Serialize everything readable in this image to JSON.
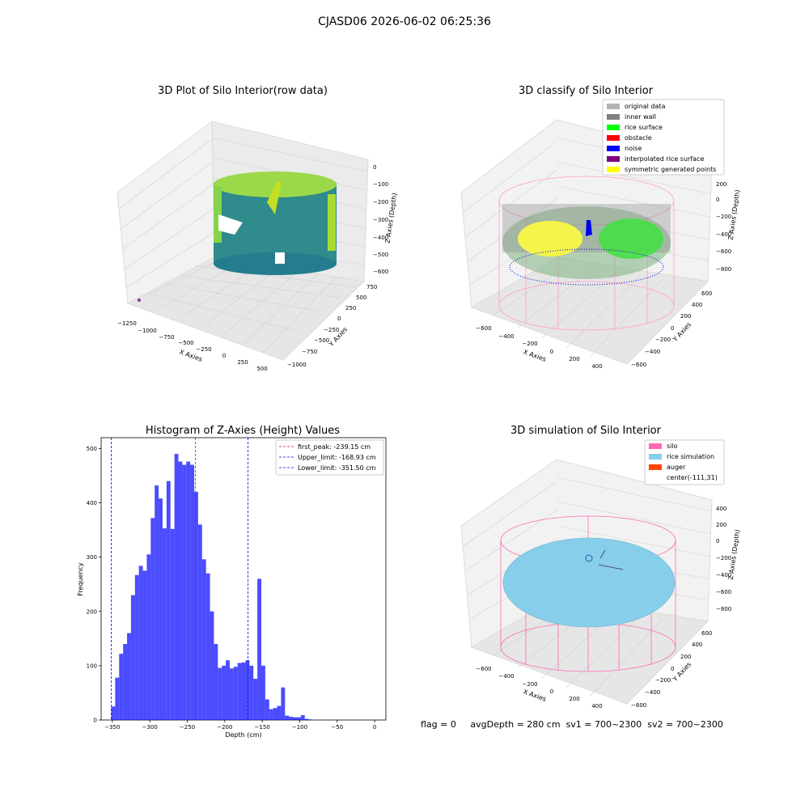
{
  "suptitle": "CJASD06 2026-06-02 06:25:36",
  "panels": {
    "raw": {
      "title": "3D Plot of Silo Interior(row data)",
      "xlabel": "X Axies",
      "ylabel": "Y Axies",
      "zlabel": "Z Axies (Depth)",
      "xticks": [
        "−1250",
        "−1000",
        "−750",
        "−500",
        "−250",
        "0",
        "250",
        "500"
      ],
      "yticks": [
        "750",
        "500",
        "250",
        "0",
        "−250",
        "−500",
        "−750",
        "−1000"
      ],
      "zticks": [
        "0",
        "−100",
        "−200",
        "−300",
        "−400",
        "−500",
        "−600"
      ]
    },
    "classify": {
      "title": "3D classify of Silo Interior",
      "xlabel": "X Axies",
      "ylabel": "Y Axies",
      "zlabel": "Z Axies (Depth)",
      "xticks": [
        "−600",
        "−400",
        "−200",
        "0",
        "200",
        "400"
      ],
      "yticks": [
        "600",
        "400",
        "200",
        "0",
        "−200",
        "−400",
        "−600"
      ],
      "zticks": [
        "400",
        "200",
        "0",
        "−200",
        "−400",
        "−600",
        "−800"
      ],
      "legend": [
        {
          "label": "original data",
          "color": "#b4b4b4"
        },
        {
          "label": "inner wall",
          "color": "#808080"
        },
        {
          "label": "rice surface",
          "color": "#00ff00"
        },
        {
          "label": "obstacle",
          "color": "#ff0000"
        },
        {
          "label": "noise",
          "color": "#0000ff"
        },
        {
          "label": "interpolated rice surface",
          "color": "#800080"
        },
        {
          "label": "symmetric generated points",
          "color": "#ffff00"
        }
      ]
    },
    "simulation": {
      "title": "3D simulation of Silo Interior",
      "xlabel": "X Axies",
      "ylabel": "Y Axies",
      "zlabel": "Z Axies (Depth)",
      "xticks": [
        "−600",
        "−400",
        "−200",
        "0",
        "200",
        "400"
      ],
      "yticks": [
        "600",
        "400",
        "200",
        "0",
        "−200",
        "−400",
        "−600"
      ],
      "zticks": [
        "400",
        "200",
        "0",
        "−200",
        "−400",
        "−600",
        "−800"
      ],
      "legend": [
        {
          "label": "silo",
          "color": "#ff69b4"
        },
        {
          "label": "rice simulation",
          "color": "#87ceeb"
        },
        {
          "label": "auger",
          "color": "#ff4500"
        },
        {
          "label": "center(-111,31)",
          "color": ""
        }
      ]
    }
  },
  "chart_data": {
    "type": "bar",
    "title": "Histogram of Z-Axies (Height) Values",
    "xlabel": "Depth (cm)",
    "ylabel": "Frequency",
    "xlim": [
      -365,
      15
    ],
    "ylim": [
      0,
      520
    ],
    "xticks": [
      -350,
      -300,
      -250,
      -200,
      -150,
      -100,
      -50,
      0
    ],
    "yticks": [
      0,
      100,
      200,
      300,
      400,
      500
    ],
    "bar_color": "#0000ff",
    "bin_width": 5.27,
    "bins": [
      {
        "x": -351.5,
        "count": 25
      },
      {
        "x": -346.23,
        "count": 78
      },
      {
        "x": -340.96,
        "count": 122
      },
      {
        "x": -335.69,
        "count": 140
      },
      {
        "x": -330.42,
        "count": 160
      },
      {
        "x": -325.15,
        "count": 230
      },
      {
        "x": -319.88,
        "count": 267
      },
      {
        "x": -314.61,
        "count": 284
      },
      {
        "x": -309.34,
        "count": 275
      },
      {
        "x": -304.07,
        "count": 305
      },
      {
        "x": -298.8,
        "count": 372
      },
      {
        "x": -293.53,
        "count": 432
      },
      {
        "x": -288.26,
        "count": 408
      },
      {
        "x": -282.99,
        "count": 353
      },
      {
        "x": -277.72,
        "count": 440
      },
      {
        "x": -272.45,
        "count": 352
      },
      {
        "x": -267.18,
        "count": 490
      },
      {
        "x": -261.91,
        "count": 476
      },
      {
        "x": -256.64,
        "count": 470
      },
      {
        "x": -251.37,
        "count": 476
      },
      {
        "x": -246.1,
        "count": 470
      },
      {
        "x": -240.83,
        "count": 420
      },
      {
        "x": -235.56,
        "count": 360
      },
      {
        "x": -230.29,
        "count": 296
      },
      {
        "x": -225.02,
        "count": 270
      },
      {
        "x": -219.75,
        "count": 200
      },
      {
        "x": -214.48,
        "count": 140
      },
      {
        "x": -209.21,
        "count": 96
      },
      {
        "x": -203.94,
        "count": 100
      },
      {
        "x": -198.67,
        "count": 110
      },
      {
        "x": -193.4,
        "count": 95
      },
      {
        "x": -188.13,
        "count": 98
      },
      {
        "x": -182.86,
        "count": 105
      },
      {
        "x": -177.59,
        "count": 106
      },
      {
        "x": -172.32,
        "count": 110
      },
      {
        "x": -167.05,
        "count": 100
      },
      {
        "x": -161.78,
        "count": 76
      },
      {
        "x": -156.51,
        "count": 260
      },
      {
        "x": -151.24,
        "count": 100
      },
      {
        "x": -145.97,
        "count": 38
      },
      {
        "x": -140.7,
        "count": 20
      },
      {
        "x": -135.43,
        "count": 22
      },
      {
        "x": -130.16,
        "count": 26
      },
      {
        "x": -124.89,
        "count": 60
      },
      {
        "x": -119.62,
        "count": 8
      },
      {
        "x": -114.35,
        "count": 6
      },
      {
        "x": -109.08,
        "count": 5
      },
      {
        "x": -103.81,
        "count": 5
      },
      {
        "x": -98.54,
        "count": 9
      },
      {
        "x": -93.27,
        "count": 2
      },
      {
        "x": -88.0,
        "count": 1
      }
    ],
    "vlines": [
      {
        "label": "first_peak: -239.15 cm",
        "x": -239.15,
        "color": "#ff0000"
      },
      {
        "label": "Upper_limit: -168.93 cm",
        "x": -168.93,
        "color": "#0000ff"
      },
      {
        "label": "Lower_limit: -351.50 cm",
        "x": -351.5,
        "color": "#0000ff"
      }
    ],
    "legend_position": "top-right"
  },
  "footer": {
    "flag": "flag = 0",
    "avgDepth": "avgDepth = 280 cm",
    "sv1": "sv1 = 700~2300",
    "sv2": "sv2 = 700~2300"
  }
}
